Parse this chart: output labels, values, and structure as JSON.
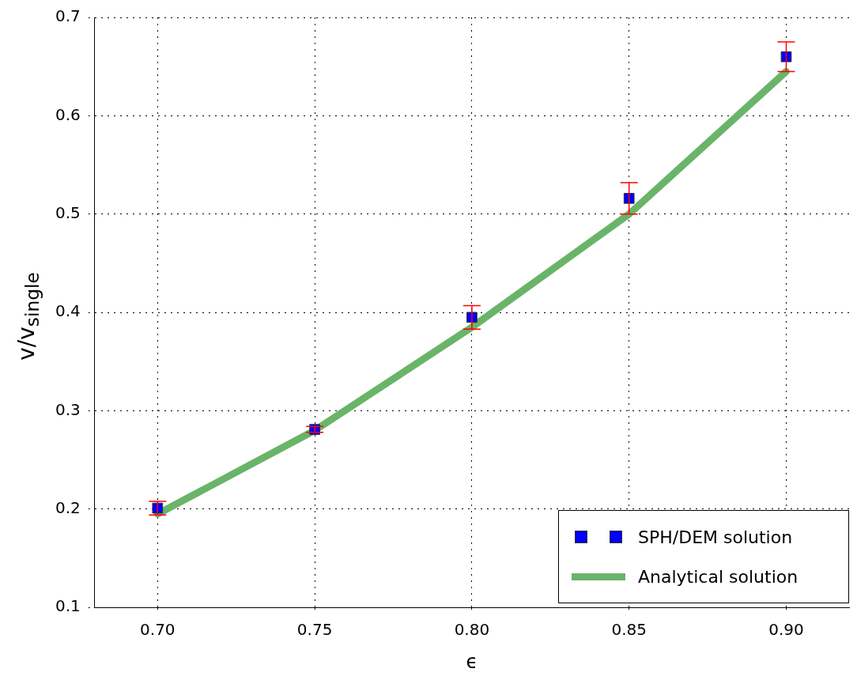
{
  "chart_data": {
    "type": "scatter",
    "xlabel": "ϵ",
    "ylabel": "v/v$_{single}$",
    "x": [
      0.7,
      0.75,
      0.8,
      0.85,
      0.9
    ],
    "series": [
      {
        "name": "SPH/DEM solution",
        "color": "#0000ff",
        "marker": "square",
        "values": [
          0.201,
          0.281,
          0.395,
          0.516,
          0.66
        ],
        "errors": [
          0.007,
          0.003,
          0.012,
          0.016,
          0.015
        ]
      },
      {
        "name": "Analytical solution",
        "type": "line",
        "color": "#6ab46a",
        "marker": "none",
        "line_style": "solid",
        "values": [
          0.195,
          0.28,
          0.385,
          0.5,
          0.645
        ]
      }
    ],
    "xlim": [
      0.68,
      0.92
    ],
    "xticks": [
      {
        "value": 0.7,
        "label": "0.70"
      },
      {
        "value": 0.75,
        "label": "0.75"
      },
      {
        "value": 0.8,
        "label": "0.80"
      },
      {
        "value": 0.85,
        "label": "0.85"
      },
      {
        "value": 0.9,
        "label": "0.90"
      }
    ],
    "ylim": [
      0.1,
      0.7
    ],
    "yticks": [
      0.1,
      0.2,
      0.3,
      0.4,
      0.5,
      0.6,
      0.7
    ],
    "grid": true,
    "legend": "bottom right"
  }
}
